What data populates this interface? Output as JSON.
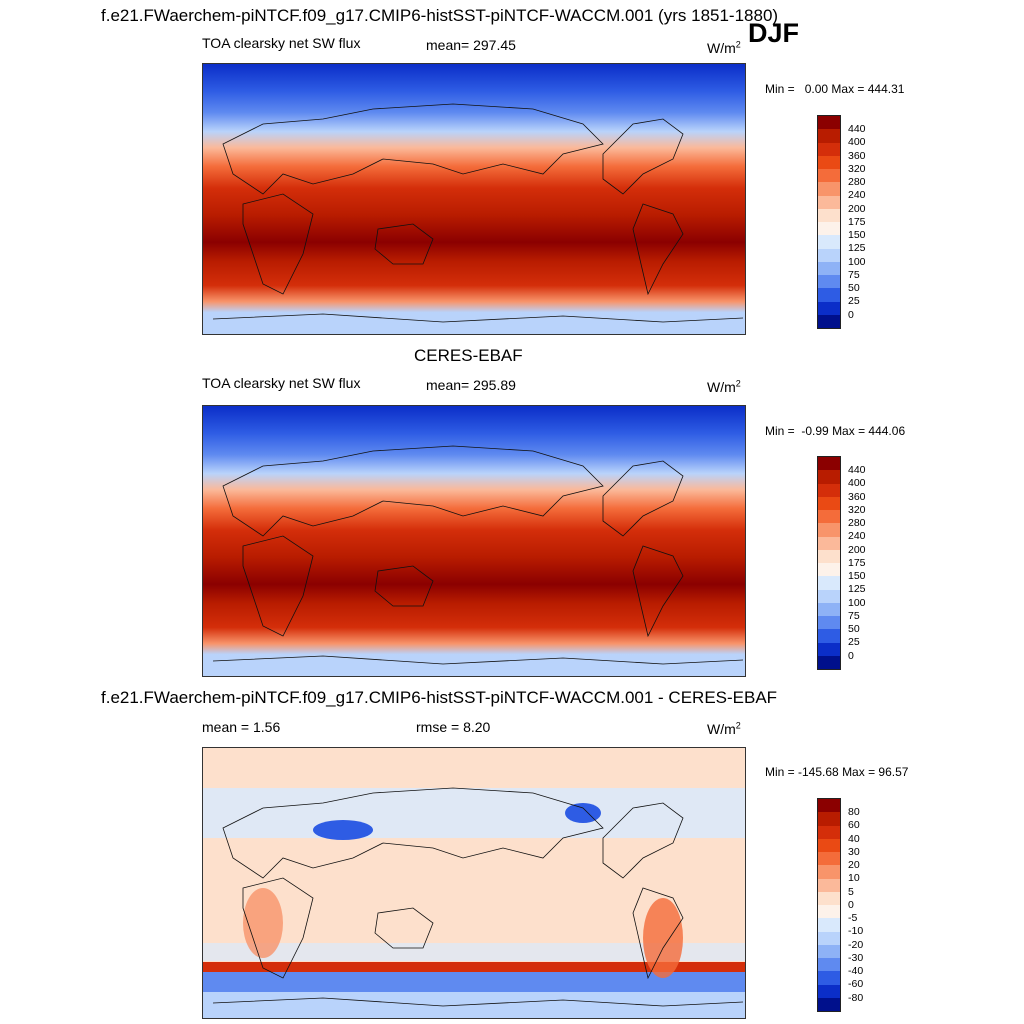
{
  "header": {
    "title_prefix": "f.e21.FWaerchem-piNTCF.f09_g17.CMIP6-histSST-piNTCF-WACCM.001 (yrs",
    "years": "1851-1880)",
    "season": "DJF"
  },
  "panels": [
    {
      "variable": "TOA clearsky net SW flux",
      "mean_text": "mean= 297.45",
      "units": "W/m",
      "units_sup": "2",
      "min_text": "Min =",
      "min_val": "0.00",
      "max_text": "Max = 444.31",
      "levels": [
        "440",
        "400",
        "360",
        "320",
        "280",
        "240",
        "200",
        "175",
        "150",
        "125",
        "100",
        "75",
        "50",
        "25",
        "0"
      ],
      "colors": [
        "#8b0000",
        "#b81c00",
        "#d42e0a",
        "#ea4a14",
        "#f46c3a",
        "#f8946a",
        "#fbb99a",
        "#fde0cc",
        "#fdf2ea",
        "#d9e9fc",
        "#b9d3fb",
        "#8eb2f6",
        "#5f8af0",
        "#2e5ce4",
        "#0b2ec8",
        "#00108c"
      ]
    },
    {
      "title": "CERES-EBAF",
      "variable": "TOA clearsky net SW flux",
      "mean_text": "mean= 295.89",
      "units": "W/m",
      "units_sup": "2",
      "min_text": "Min =",
      "min_val": "-0.99",
      "max_text": "Max = 444.06",
      "levels": [
        "440",
        "400",
        "360",
        "320",
        "280",
        "240",
        "200",
        "175",
        "150",
        "125",
        "100",
        "75",
        "50",
        "25",
        "0"
      ],
      "colors": [
        "#8b0000",
        "#b81c00",
        "#d42e0a",
        "#ea4a14",
        "#f46c3a",
        "#f8946a",
        "#fbb99a",
        "#fde0cc",
        "#fdf2ea",
        "#d9e9fc",
        "#b9d3fb",
        "#8eb2f6",
        "#5f8af0",
        "#2e5ce4",
        "#0b2ec8",
        "#00108c"
      ]
    },
    {
      "title": "f.e21.FWaerchem-piNTCF.f09_g17.CMIP6-histSST-piNTCF-WACCM.001 - CERES-EBAF",
      "mean_text": "mean =   1.56",
      "rmse_text": "rmse =   8.20",
      "units": "W/m",
      "units_sup": "2",
      "min_text": "Min = -145.68",
      "max_text": "Max =  96.57",
      "levels": [
        "80",
        "60",
        "40",
        "30",
        "20",
        "10",
        "5",
        "0",
        "-5",
        "-10",
        "-20",
        "-30",
        "-40",
        "-60",
        "-80"
      ],
      "colors": [
        "#8b0000",
        "#b81c00",
        "#d42e0a",
        "#ea4a14",
        "#f46c3a",
        "#f8946a",
        "#fbb99a",
        "#fde0cc",
        "#fdf2ea",
        "#d9e9fc",
        "#b9d3fb",
        "#8eb2f6",
        "#5f8af0",
        "#2e5ce4",
        "#0b2ec8",
        "#00108c"
      ]
    }
  ]
}
